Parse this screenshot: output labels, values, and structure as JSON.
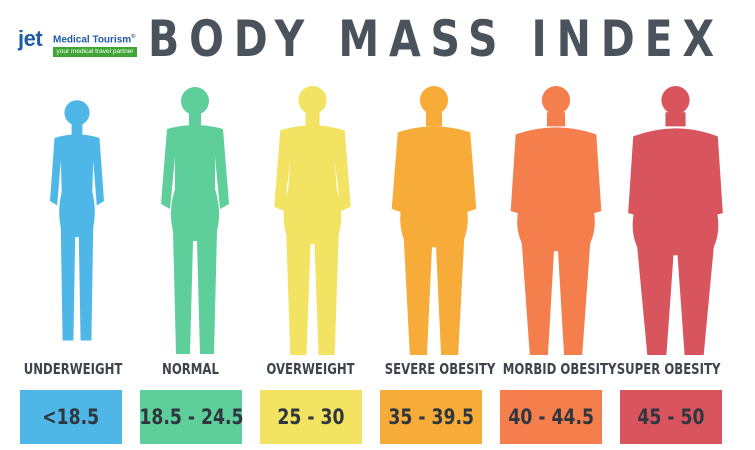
{
  "logo": {
    "brand": "jet",
    "name": "Medical Tourism",
    "reg": "®",
    "tagline": "your medical travel partner"
  },
  "title": "BODY MASS INDEX",
  "categories": [
    {
      "id": "underweight",
      "label": "UNDERWEIGHT",
      "range": "<18.5",
      "color": "#4fb6e8"
    },
    {
      "id": "normal",
      "label": "NORMAL",
      "range": "18.5 - 24.5",
      "color": "#5ecf9a"
    },
    {
      "id": "overweight",
      "label": "OVERWEIGHT",
      "range": "25 - 30",
      "color": "#f2e362"
    },
    {
      "id": "severe-obesity",
      "label": "SEVERE OBESITY",
      "range": "35 - 39.5",
      "color": "#f7ac3a"
    },
    {
      "id": "morbid-obesity",
      "label": "MORBID OBESITY",
      "range": "40 - 44.5",
      "color": "#f47f4c"
    },
    {
      "id": "super-obesity",
      "label": "SUPER OBESITY",
      "range": "45 - 50",
      "color": "#d9555e"
    }
  ]
}
